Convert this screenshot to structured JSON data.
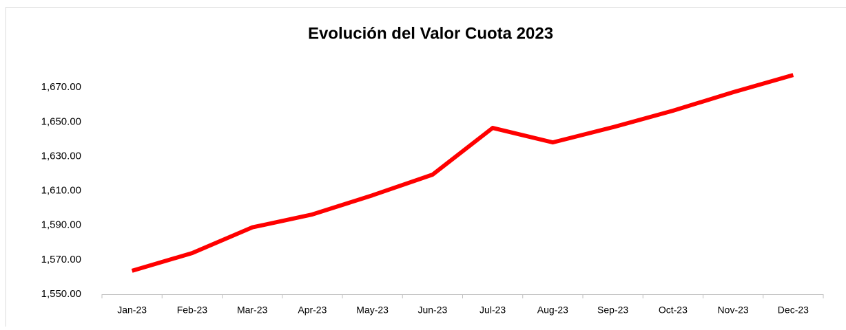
{
  "chart_data": {
    "type": "line",
    "title": "Evolución del Valor Cuota 2023",
    "categories": [
      "Jan-23",
      "Feb-23",
      "Mar-23",
      "Apr-23",
      "May-23",
      "Jun-23",
      "Jul-23",
      "Aug-23",
      "Sep-23",
      "Oct-23",
      "Nov-23",
      "Dec-23"
    ],
    "series": [
      {
        "name": "Valor Cuota",
        "color": "#ff0000",
        "values": [
          1563.6,
          1573.9,
          1588.8,
          1596.3,
          1607.4,
          1619.4,
          1646.5,
          1638.1,
          1646.9,
          1656.5,
          1667.2,
          1677.2
        ]
      }
    ],
    "ylim": [
      1550,
      1690
    ],
    "yticks": [
      {
        "value": 1550,
        "label": "1,550.00"
      },
      {
        "value": 1570,
        "label": "1,570.00"
      },
      {
        "value": 1590,
        "label": "1,590.00"
      },
      {
        "value": 1610,
        "label": "1,610.00"
      },
      {
        "value": 1630,
        "label": "1,630.00"
      },
      {
        "value": 1650,
        "label": "1,650.00"
      },
      {
        "value": 1670,
        "label": "1,670.00"
      }
    ],
    "grid": false
  }
}
